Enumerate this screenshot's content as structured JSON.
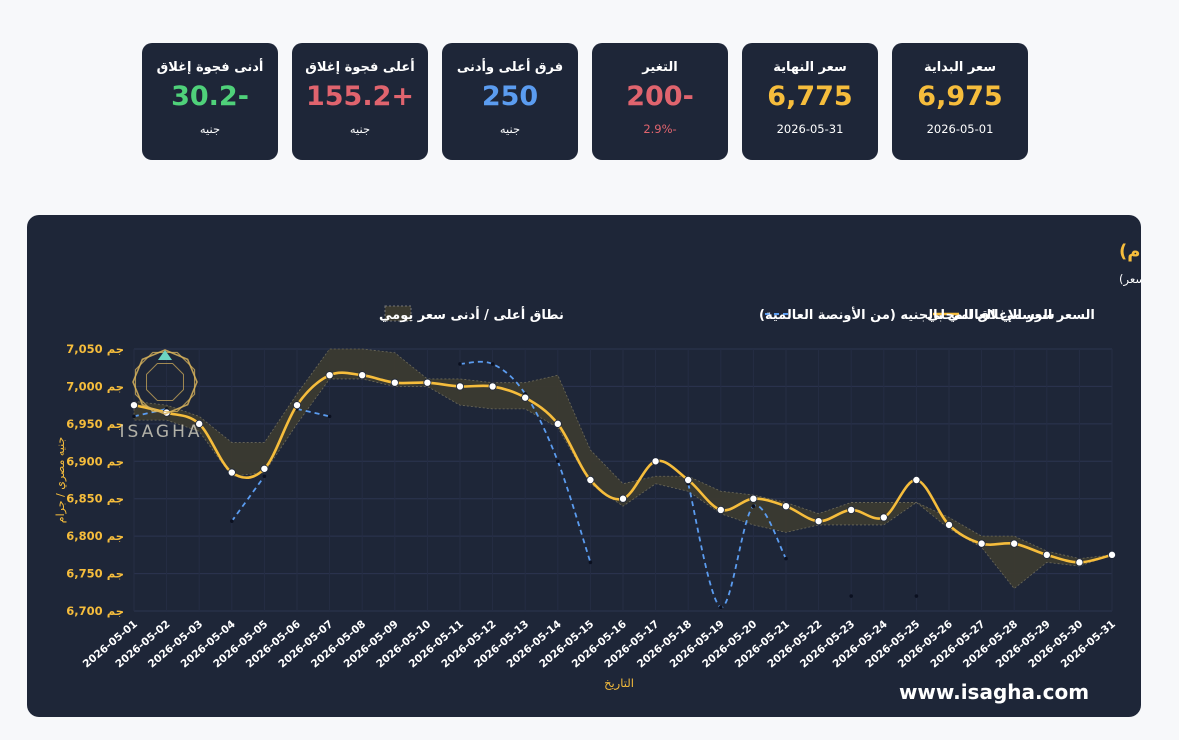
{
  "cards": [
    {
      "title": "سعر البداية",
      "value": "6,975",
      "sub": "2026-05-01",
      "value_color": "#f6bd3c",
      "sub_color": "#ffffff"
    },
    {
      "title": "سعر النهاية",
      "value": "6,775",
      "sub": "2026-05-31",
      "value_color": "#f6bd3c",
      "sub_color": "#ffffff"
    },
    {
      "title": "التغير",
      "value": "200-",
      "sub": "2.9%-",
      "value_color": "#e0646e",
      "sub_color": "#e0646e"
    },
    {
      "title": "فرق أعلى وأدنى",
      "value": "250",
      "sub": "جنيه",
      "value_color": "#5b9cf0",
      "sub_color": "#ffffff"
    },
    {
      "title": "أعلى فجوة إغلاق",
      "value": "155.2+",
      "sub": "جنيه",
      "value_color": "#e0646e",
      "sub_color": "#ffffff"
    },
    {
      "title": "أدنى فجوة إغلاق",
      "value": "30.2-",
      "sub": "جنيه",
      "value_color": "#4fd17a",
      "sub_color": "#ffffff"
    }
  ],
  "watermark": {
    "logo_text": "ISAGHA",
    "url": "www.isagha.com"
  },
  "colors": {
    "panel": "#1e2638",
    "gold": "#f6bd3c",
    "blue": "#5b9cf0",
    "band": "#3b3a30",
    "text": "#ffffff"
  },
  "chart_data": {
    "type": "line",
    "title": "السعر المحلي مقابل السعر الرسمي العالمي بالجنيه (جنيه/جرام)",
    "subtitle": "المنطقة المظللة تمثل نطاق التذبذب اليومي (أعلى وأدنى سعر)",
    "xlabel": "التاريخ",
    "ylabel": "جنيه مصري / جرام",
    "ylim": [
      6700,
      7050
    ],
    "yticks": [
      6700,
      6750,
      6800,
      6850,
      6900,
      6950,
      7000,
      7050
    ],
    "ytick_labels": [
      "6,700 جم",
      "6,750 جم",
      "6,800 جم",
      "6,850 جم",
      "6,900 جم",
      "6,950 جم",
      "7,000 جم",
      "7,050 جم"
    ],
    "grid": true,
    "legend_position": "top",
    "x": [
      "2026-05-01",
      "2026-05-02",
      "2026-05-03",
      "2026-05-04",
      "2026-05-05",
      "2026-05-06",
      "2026-05-07",
      "2026-05-08",
      "2026-05-09",
      "2026-05-10",
      "2026-05-11",
      "2026-05-12",
      "2026-05-13",
      "2026-05-14",
      "2026-05-15",
      "2026-05-16",
      "2026-05-17",
      "2026-05-18",
      "2026-05-19",
      "2026-05-20",
      "2026-05-21",
      "2026-05-22",
      "2026-05-23",
      "2026-05-24",
      "2026-05-25",
      "2026-05-26",
      "2026-05-27",
      "2026-05-28",
      "2026-05-29",
      "2026-05-30",
      "2026-05-31"
    ],
    "series": [
      {
        "name": "سعر الإغلاق المحلي",
        "color": "#f6bd3c",
        "style": "solid",
        "values": [
          6975,
          6965,
          6950,
          6885,
          6890,
          6975,
          7015,
          7015,
          7005,
          7005,
          7000,
          7000,
          6985,
          6950,
          6875,
          6850,
          6900,
          6875,
          6835,
          6850,
          6840,
          6820,
          6835,
          6825,
          6875,
          6815,
          6790,
          6790,
          6775,
          6765,
          6775
        ]
      },
      {
        "name": "السعر الرسمي العالمي بالجنيه (من الأونصة العالمية)",
        "color": "#5b9cf0",
        "style": "dashed",
        "segments": [
          {
            "x": [
              "2026-05-01",
              "2026-05-02"
            ],
            "values": [
              6960,
              6970
            ]
          },
          {
            "x": [
              "2026-05-04",
              "2026-05-05"
            ],
            "values": [
              6820,
              6880
            ]
          },
          {
            "x": [
              "2026-05-06",
              "2026-05-07"
            ],
            "values": [
              6970,
              6960
            ]
          },
          {
            "x": [
              "2026-05-11",
              "2026-05-12",
              "2026-05-13",
              "2026-05-14",
              "2026-05-15"
            ],
            "values": [
              7030,
              7030,
              6990,
              6900,
              6765
            ]
          },
          {
            "x": [
              "2026-05-18",
              "2026-05-19",
              "2026-05-20",
              "2026-05-21"
            ],
            "values": [
              6870,
              6705,
              6840,
              6770
            ]
          }
        ],
        "points": [
          {
            "x": "2026-05-23",
            "value": 6720
          },
          {
            "x": "2026-05-25",
            "value": 6720
          }
        ]
      }
    ],
    "band": {
      "name": "نطاق أعلى / أدنى سعر يومي",
      "high": [
        6980,
        6975,
        6960,
        6925,
        6925,
        6990,
        7050,
        7050,
        7045,
        7010,
        7010,
        7005,
        7005,
        7015,
        6915,
        6870,
        6880,
        6880,
        6860,
        6855,
        6845,
        6830,
        6845,
        6845,
        6845,
        6825,
        6800,
        6800,
        6780,
        6770,
        6775
      ],
      "low": [
        6955,
        6955,
        6940,
        6880,
        6885,
        6950,
        7010,
        7010,
        7000,
        7000,
        6975,
        6970,
        6970,
        6945,
        6870,
        6840,
        6870,
        6860,
        6830,
        6815,
        6805,
        6815,
        6815,
        6815,
        6845,
        6810,
        6785,
        6730,
        6765,
        6760,
        6775
      ]
    }
  }
}
